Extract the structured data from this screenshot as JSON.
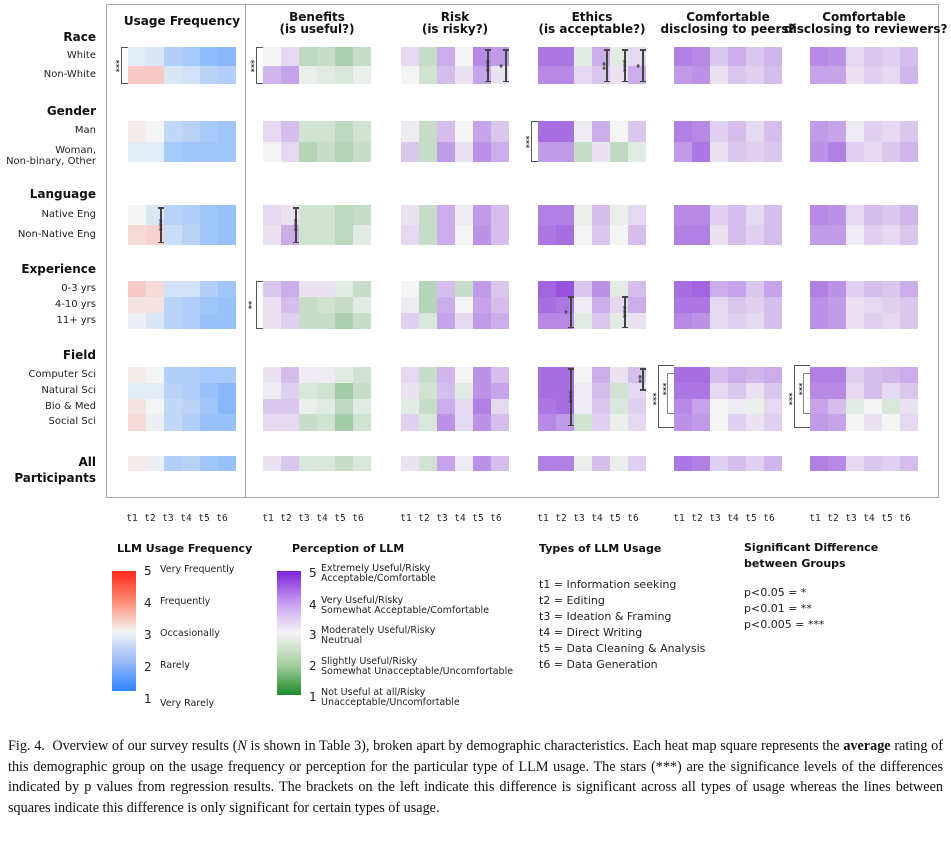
{
  "chart_data": {
    "type": "heatmap",
    "title": "Overview of survey results by demographic characteristics",
    "x_tick_labels": [
      "t1",
      "t2",
      "t3",
      "t4",
      "t5",
      "t6"
    ],
    "panels": [
      {
        "key": "usage",
        "title_lines": [
          "Usage Frequency"
        ],
        "scale": "frequency"
      },
      {
        "key": "benefits",
        "title_lines": [
          "Benefits",
          "(is useful?)"
        ],
        "scale": "perception"
      },
      {
        "key": "risk",
        "title_lines": [
          "Risk",
          "(is risky?)"
        ],
        "scale": "perception"
      },
      {
        "key": "ethics",
        "title_lines": [
          "Ethics",
          "(is acceptable?)"
        ],
        "scale": "perception"
      },
      {
        "key": "peers",
        "title_lines": [
          "Comfortable",
          "disclosing to peers?"
        ],
        "scale": "perception"
      },
      {
        "key": "reviewers",
        "title_lines": [
          "Comfortable",
          "disclosing to reviewers?"
        ],
        "scale": "perception"
      }
    ],
    "groups": [
      {
        "name": "Race",
        "rows": [
          "White",
          "Non-White"
        ],
        "values": {
          "usage": [
            [
              2.8,
              2.7,
              2.2,
              2.1,
              1.8,
              1.7
            ],
            [
              3.5,
              3.5,
              2.7,
              2.6,
              2.3,
              2.2
            ]
          ],
          "benefits": [
            [
              3.0,
              3.3,
              2.4,
              2.5,
              2.2,
              2.5
            ],
            [
              3.7,
              3.9,
              2.9,
              2.8,
              2.7,
              2.9
            ]
          ],
          "risk": [
            [
              3.3,
              2.5,
              3.8,
              3.0,
              4.2,
              4.0
            ],
            [
              3.0,
              2.6,
              3.6,
              3.2,
              3.9,
              3.2
            ]
          ],
          "ethics": [
            [
              4.4,
              4.4,
              2.8,
              3.8,
              2.8,
              3.3
            ],
            [
              4.2,
              4.2,
              3.3,
              3.5,
              3.2,
              3.8
            ]
          ],
          "peers": [
            [
              4.3,
              4.2,
              3.5,
              3.8,
              3.5,
              3.7
            ],
            [
              4.0,
              4.1,
              3.2,
              3.5,
              3.4,
              3.6
            ]
          ],
          "reviewers": [
            [
              4.2,
              4.1,
              3.3,
              3.5,
              3.4,
              3.6
            ],
            [
              3.9,
              3.9,
              3.2,
              3.4,
              3.3,
              3.7
            ]
          ]
        },
        "group_bracket": {
          "usage": "***",
          "benefits": "***"
        },
        "cell_lines": [
          {
            "panel": "risk",
            "col": 5,
            "stars": "***"
          },
          {
            "panel": "risk",
            "col": 6,
            "stars": "*"
          },
          {
            "panel": "ethics",
            "col": 4,
            "stars": "**"
          },
          {
            "panel": "ethics",
            "col": 5,
            "stars": "***"
          },
          {
            "panel": "ethics",
            "col": 6,
            "stars": "*"
          }
        ]
      },
      {
        "name": "Gender",
        "rows": [
          "Man",
          "Woman,\nNon-binary, Other"
        ],
        "values": {
          "usage": [
            [
              3.1,
              3.0,
              2.4,
              2.3,
              2.1,
              2.0
            ],
            [
              2.8,
              2.8,
              2.1,
              2.0,
              2.0,
              2.0
            ]
          ],
          "benefits": [
            [
              3.3,
              3.6,
              2.6,
              2.6,
              2.4,
              2.6
            ],
            [
              3.0,
              3.3,
              2.3,
              2.5,
              2.3,
              2.5
            ]
          ],
          "risk": [
            [
              3.1,
              2.5,
              3.6,
              3.0,
              3.9,
              3.5
            ],
            [
              3.5,
              2.5,
              4.0,
              3.2,
              4.1,
              3.8
            ]
          ],
          "ethics": [
            [
              4.5,
              4.5,
              3.1,
              3.8,
              3.0,
              3.5
            ],
            [
              4.0,
              4.0,
              2.5,
              3.2,
              2.4,
              2.8
            ]
          ],
          "peers": [
            [
              4.3,
              4.2,
              3.4,
              3.6,
              3.3,
              3.6
            ],
            [
              4.0,
              4.4,
              3.2,
              3.5,
              3.4,
              3.5
            ]
          ],
          "reviewers": [
            [
              4.0,
              3.9,
              3.1,
              3.4,
              3.3,
              3.5
            ],
            [
              4.1,
              4.3,
              3.4,
              3.3,
              3.5,
              3.7
            ]
          ]
        },
        "group_bracket": {
          "ethics": "***"
        },
        "cell_lines": []
      },
      {
        "name": "Language",
        "rows": [
          "Native Eng",
          "Non-Native Eng"
        ],
        "values": {
          "usage": [
            [
              3.0,
              2.7,
              2.3,
              2.2,
              2.0,
              1.9
            ],
            [
              3.3,
              3.4,
              2.5,
              2.3,
              2.0,
              1.9
            ]
          ],
          "benefits": [
            [
              3.3,
              3.2,
              2.6,
              2.6,
              2.4,
              2.5
            ],
            [
              3.2,
              3.8,
              2.6,
              2.6,
              2.4,
              2.8
            ]
          ],
          "risk": [
            [
              3.2,
              2.5,
              3.8,
              3.1,
              4.0,
              3.6
            ],
            [
              3.3,
              2.5,
              3.8,
              3.0,
              4.1,
              3.6
            ]
          ],
          "ethics": [
            [
              4.3,
              4.3,
              2.9,
              3.6,
              2.9,
              3.3
            ],
            [
              4.4,
              4.5,
              3.0,
              3.5,
              3.0,
              3.6
            ]
          ],
          "peers": [
            [
              4.2,
              4.2,
              3.4,
              3.6,
              3.3,
              3.6
            ],
            [
              4.3,
              4.3,
              3.2,
              3.6,
              3.4,
              3.6
            ]
          ],
          "reviewers": [
            [
              4.2,
              4.1,
              3.3,
              3.6,
              3.5,
              3.7
            ],
            [
              4.0,
              4.0,
              3.1,
              3.4,
              3.3,
              3.5
            ]
          ]
        },
        "group_bracket": {},
        "cell_lines": [
          {
            "panel": "usage",
            "col": 2,
            "stars": "***"
          },
          {
            "panel": "benefits",
            "col": 2,
            "stars": "***"
          }
        ]
      },
      {
        "name": "Experience",
        "rows": [
          "0-3 yrs",
          "4-10 yrs",
          "11+ yrs"
        ],
        "values": {
          "usage": [
            [
              3.5,
              3.3,
              2.6,
              2.6,
              2.2,
              2.0
            ],
            [
              3.2,
              3.2,
              2.3,
              2.2,
              2.0,
              1.9
            ],
            [
              2.9,
              2.7,
              2.3,
              2.2,
              1.9,
              1.9
            ]
          ],
          "benefits": [
            [
              3.5,
              3.8,
              3.2,
              3.2,
              2.8,
              2.5
            ],
            [
              3.2,
              3.6,
              2.5,
              2.6,
              2.5,
              2.8
            ],
            [
              3.2,
              3.4,
              2.5,
              2.5,
              2.2,
              2.5
            ]
          ],
          "risk": [
            [
              3.0,
              2.3,
              3.6,
              2.5,
              4.0,
              3.5
            ],
            [
              3.1,
              2.3,
              3.8,
              3.0,
              3.9,
              3.6
            ],
            [
              3.4,
              2.7,
              3.9,
              3.3,
              4.0,
              3.8
            ]
          ],
          "ethics": [
            [
              4.6,
              4.8,
              3.5,
              4.1,
              2.8,
              3.6
            ],
            [
              4.5,
              4.4,
              3.1,
              3.8,
              3.3,
              3.8
            ],
            [
              4.2,
              4.2,
              2.8,
              3.5,
              2.8,
              3.2
            ]
          ],
          "peers": [
            [
              4.5,
              4.6,
              3.8,
              3.9,
              3.5,
              3.9
            ],
            [
              4.4,
              4.4,
              3.3,
              3.5,
              3.4,
              3.6
            ],
            [
              4.2,
              4.1,
              3.3,
              3.4,
              3.3,
              3.6
            ]
          ],
          "reviewers": [
            [
              4.3,
              4.1,
              3.4,
              3.6,
              3.5,
              3.8
            ],
            [
              4.1,
              4.0,
              3.2,
              3.3,
              3.4,
              3.5
            ],
            [
              4.1,
              4.0,
              3.2,
              3.4,
              3.3,
              3.5
            ]
          ]
        },
        "group_bracket": {
          "benefits": "**"
        },
        "cell_lines": [
          {
            "panel": "ethics",
            "col": 2,
            "stars": "*"
          },
          {
            "panel": "ethics",
            "col": 5,
            "stars": "***"
          }
        ]
      },
      {
        "name": "Field",
        "rows": [
          "Computer Sci",
          "Natural Sci",
          "Bio & Med",
          "Social Sci"
        ],
        "values": {
          "usage": [
            [
              3.1,
              3.0,
              2.2,
              2.2,
              2.1,
              2.1
            ],
            [
              2.8,
              2.8,
              2.3,
              2.2,
              1.9,
              1.7
            ],
            [
              3.2,
              3.0,
              2.4,
              2.3,
              2.0,
              1.7
            ],
            [
              3.3,
              2.9,
              2.4,
              2.2,
              1.9,
              1.9
            ]
          ],
          "benefits": [
            [
              3.2,
              3.6,
              3.1,
              3.1,
              2.8,
              2.6
            ],
            [
              3.1,
              3.4,
              2.7,
              2.6,
              2.1,
              2.5
            ],
            [
              3.5,
              3.5,
              2.9,
              2.8,
              2.4,
              2.8
            ],
            [
              3.3,
              3.3,
              2.5,
              2.6,
              2.1,
              2.6
            ]
          ],
          "risk": [
            [
              3.3,
              2.5,
              3.7,
              3.0,
              4.1,
              3.6
            ],
            [
              3.2,
              2.6,
              3.6,
              2.8,
              4.1,
              3.9
            ],
            [
              2.8,
              2.5,
              3.8,
              3.3,
              4.3,
              3.3
            ],
            [
              3.4,
              2.7,
              4.1,
              3.3,
              4.1,
              3.6
            ]
          ],
          "ethics": [
            [
              4.5,
              4.5,
              3.0,
              3.8,
              3.2,
              3.6
            ],
            [
              4.5,
              4.5,
              3.1,
              3.6,
              2.6,
              3.3
            ],
            [
              4.4,
              4.5,
              3.1,
              3.5,
              2.7,
              3.4
            ],
            [
              4.2,
              4.0,
              2.6,
              3.4,
              2.9,
              3.3
            ]
          ],
          "peers": [
            [
              4.5,
              4.5,
              3.6,
              3.8,
              3.7,
              3.8
            ],
            [
              4.4,
              4.4,
              3.3,
              3.5,
              3.2,
              3.5
            ],
            [
              4.2,
              3.9,
              3.0,
              3.1,
              2.9,
              3.3
            ],
            [
              4.1,
              4.0,
              3.0,
              3.4,
              3.2,
              3.4
            ]
          ],
          "reviewers": [
            [
              4.3,
              4.3,
              3.4,
              3.6,
              3.7,
              3.8
            ],
            [
              4.2,
              4.2,
              3.3,
              3.6,
              3.3,
              3.5
            ],
            [
              3.9,
              3.6,
              2.8,
              3.0,
              2.7,
              3.2
            ],
            [
              4.0,
              3.9,
              3.0,
              3.2,
              3.0,
              3.3
            ]
          ]
        },
        "group_bracket": {
          "peers": "***",
          "reviewers": "***"
        },
        "inner_bracket": {
          "peers": "***",
          "reviewers": "***"
        },
        "cell_lines": [
          {
            "panel": "ethics",
            "col": 2,
            "stars": "***"
          },
          {
            "panel": "ethics",
            "col": 6,
            "stars": "**"
          }
        ]
      },
      {
        "name": "All\nParticipants",
        "rows": [
          ""
        ],
        "values": {
          "usage": [
            [
              3.1,
              2.9,
              2.2,
              2.3,
              2.0,
              1.9
            ]
          ],
          "benefits": [
            [
              3.2,
              3.5,
              2.7,
              2.7,
              2.5,
              2.7
            ]
          ],
          "risk": [
            [
              3.2,
              2.6,
              3.9,
              3.1,
              4.1,
              3.6
            ]
          ],
          "ethics": [
            [
              4.3,
              4.3,
              2.9,
              3.6,
              2.9,
              3.4
            ]
          ],
          "peers": [
            [
              4.4,
              4.3,
              3.4,
              3.6,
              3.4,
              3.7
            ]
          ],
          "reviewers": [
            [
              4.3,
              4.2,
              3.3,
              3.5,
              3.4,
              3.6
            ]
          ]
        },
        "group_bracket": {},
        "cell_lines": []
      }
    ],
    "color_scales": {
      "frequency": {
        "low": "#2e86ff",
        "mid": "#f4f4f4",
        "high": "#ff2a1a",
        "range": [
          1,
          5
        ]
      },
      "perception": {
        "low": "#1f8a2a",
        "mid": "#f4f4f4",
        "high": "#7a22d6",
        "range": [
          1,
          5
        ]
      }
    }
  },
  "legend": {
    "frequency": {
      "title": "LLM Usage Frequency",
      "levels": [
        {
          "value": "5",
          "label": "Very Frequently"
        },
        {
          "value": "4",
          "label": "Frequently"
        },
        {
          "value": "3",
          "label": "Occasionally"
        },
        {
          "value": "2",
          "label": "Rarely"
        },
        {
          "value": "1",
          "label": "Very Rarely"
        }
      ]
    },
    "perception": {
      "title": "Perception of LLM",
      "levels": [
        {
          "value": "5",
          "label1": "Extremely Useful/Risky",
          "label2": "Acceptable/Comfortable"
        },
        {
          "value": "4",
          "label1": "Very Useful/Risky",
          "label2": "Somewhat Acceptable/Comfortable"
        },
        {
          "value": "3",
          "label1": "Moderately Useful/Risky",
          "label2": "Neutrual"
        },
        {
          "value": "2",
          "label1": "Slightly Useful/Risky",
          "label2": "Somewhat Unacceptable/Uncomfortable"
        },
        {
          "value": "1",
          "label1": "Not Useful at all/Risky",
          "label2": "Unacceptable/Uncomfortable"
        }
      ]
    },
    "types": {
      "title": "Types of LLM Usage",
      "items": [
        "t1 = Information seeking",
        "t2 = Editing",
        "t3 = Ideation & Framing",
        "t4 = Direct Writing",
        "t5 = Data Cleaning & Analysis",
        "t6 = Data Generation"
      ]
    },
    "significance": {
      "title_line1": "Significant Difference",
      "title_line2": "between Groups",
      "items": [
        "p<0.05 = *",
        "p<0.01 = **",
        "p<0.005 = ***"
      ]
    }
  },
  "caption": {
    "label": "Fig. 4.",
    "text_before_n": "Overview of our survey results (",
    "n": "N",
    "text_after_n": " is shown in Table 3), broken apart by demographic characteristics. Each heat map square represents the ",
    "emph": "average",
    "text_rest": " rating of this demographic group on the usage frequency or perception for the particular type of LLM usage. The stars (***) are the significance levels of the differences indicated by p values from regression results. The brackets on the left indicate this difference is significant across all types of usage whereas the lines between squares indicate this difference is only significant for certain types of usage."
  }
}
